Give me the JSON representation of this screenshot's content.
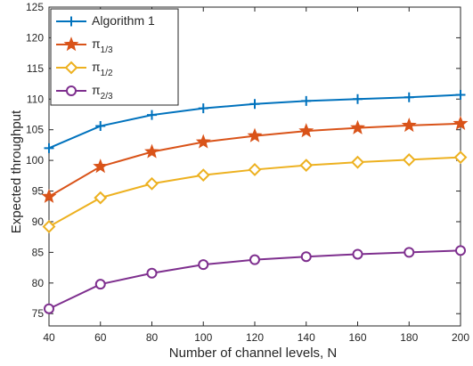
{
  "chart_data": {
    "type": "line",
    "xlabel": "Number of channel levels, N",
    "ylabel": "Expected throughput",
    "xlim": [
      40,
      200
    ],
    "ylim": [
      73,
      125
    ],
    "xticks": [
      40,
      60,
      80,
      100,
      120,
      140,
      160,
      180,
      200
    ],
    "yticks": [
      75,
      80,
      85,
      90,
      95,
      100,
      105,
      110,
      115,
      120,
      125
    ],
    "grid": false,
    "legend_position": "top-left",
    "x": [
      40,
      60,
      80,
      100,
      120,
      140,
      160,
      180,
      200
    ],
    "series": [
      {
        "name": "Algorithm 1",
        "name_sub": "",
        "marker": "plus",
        "color": "#0072BD",
        "values": [
          102.0,
          105.6,
          107.4,
          108.5,
          109.2,
          109.7,
          110.0,
          110.3,
          110.7
        ]
      },
      {
        "name": "π",
        "name_sub": "1/3",
        "marker": "star",
        "color": "#D95319",
        "values": [
          94.1,
          99.0,
          101.4,
          103.0,
          104.0,
          104.8,
          105.3,
          105.7,
          106.0
        ]
      },
      {
        "name": "π",
        "name_sub": "1/2",
        "marker": "diamond",
        "color": "#EDB120",
        "values": [
          89.2,
          93.9,
          96.2,
          97.6,
          98.5,
          99.2,
          99.7,
          100.1,
          100.5
        ]
      },
      {
        "name": "π",
        "name_sub": "2/3",
        "marker": "circle",
        "color": "#7E2F8E",
        "values": [
          75.8,
          79.8,
          81.6,
          83.0,
          83.8,
          84.3,
          84.7,
          85.0,
          85.3
        ]
      }
    ]
  }
}
